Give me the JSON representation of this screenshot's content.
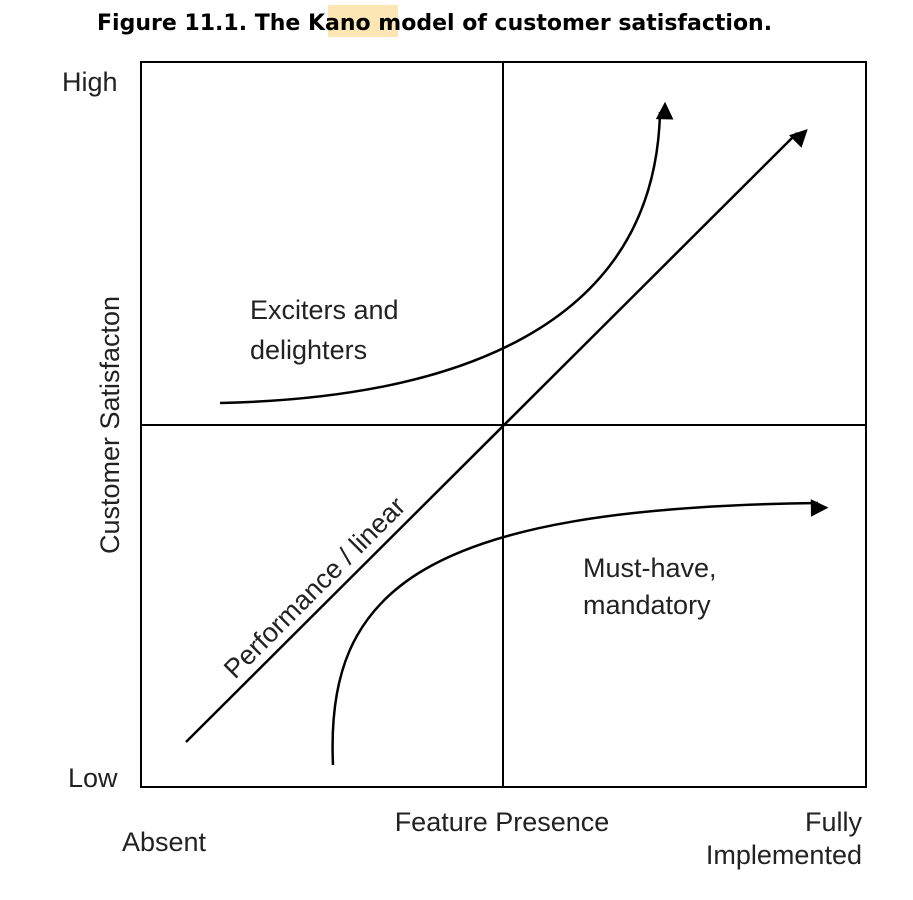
{
  "title": {
    "prefix": "Figure 11.1. The ",
    "highlight": "Kano",
    "suffix": " model of customer satisfaction."
  },
  "axes": {
    "y_high": "High",
    "y_low": "Low",
    "y_label": "Customer Satisfacton",
    "x_label": "Feature Presence",
    "x_start": "Absent",
    "x_end": [
      "Fully",
      "Implemented"
    ]
  },
  "curves": {
    "exciters": [
      "Exciters and",
      "delighters"
    ],
    "performance": "Performance / linear",
    "must_have": [
      "Must-have,",
      "mandatory"
    ]
  }
}
